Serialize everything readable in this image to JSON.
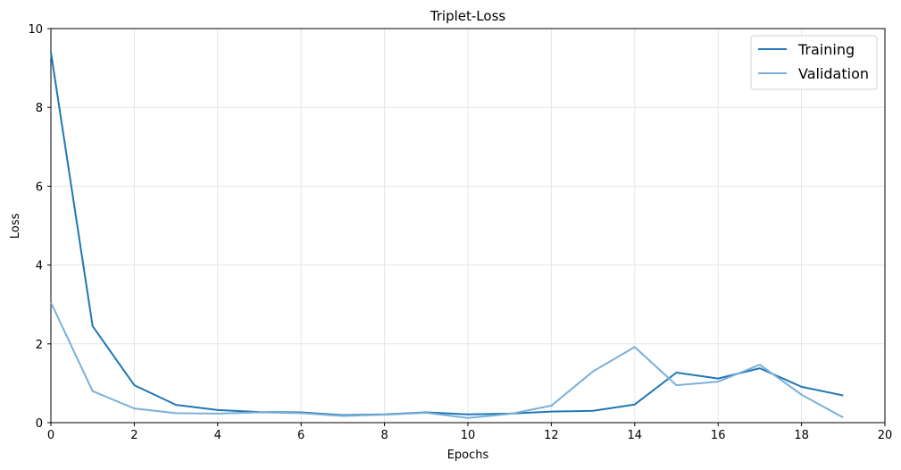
{
  "chart_data": {
    "type": "line",
    "title": "Triplet-Loss",
    "xlabel": "Epochs",
    "ylabel": "Loss",
    "xlim": [
      0,
      20
    ],
    "ylim": [
      0,
      10
    ],
    "xticks": [
      "0",
      "2",
      "4",
      "6",
      "8",
      "10",
      "12",
      "14",
      "16",
      "18",
      "20"
    ],
    "yticks": [
      "0",
      "2",
      "4",
      "6",
      "8",
      "10"
    ],
    "grid": true,
    "legend_position": "top-right",
    "x": [
      0,
      1,
      2,
      3,
      4,
      5,
      6,
      7,
      8,
      9,
      10,
      11,
      12,
      13,
      14,
      15,
      16,
      17,
      18,
      19
    ],
    "series": [
      {
        "name": "Training",
        "color": "#1f77b4",
        "values": [
          9.4,
          2.45,
          0.95,
          0.45,
          0.32,
          0.27,
          0.26,
          0.19,
          0.21,
          0.26,
          0.21,
          0.23,
          0.28,
          0.3,
          0.46,
          1.27,
          1.12,
          1.38,
          0.91,
          0.69
        ]
      },
      {
        "name": "Validation",
        "color": "#7ab0d7",
        "values": [
          3.05,
          0.8,
          0.36,
          0.24,
          0.23,
          0.26,
          0.24,
          0.17,
          0.2,
          0.25,
          0.12,
          0.22,
          0.43,
          1.3,
          1.92,
          0.95,
          1.04,
          1.47,
          0.71,
          0.13
        ]
      }
    ]
  }
}
